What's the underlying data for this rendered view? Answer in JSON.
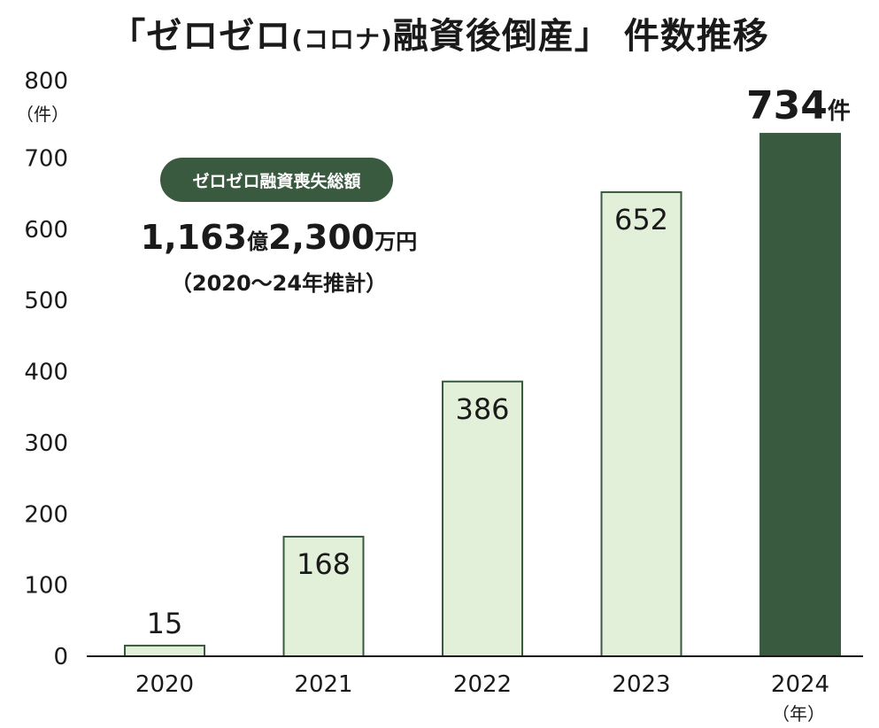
{
  "title_main": "「ゼロゼロ",
  "title_paren": "(コロナ)",
  "title_rest": "融資後倒産」 件数推移",
  "annotation": {
    "pill": "ゼロゼロ融資喪失総額",
    "amount_a": "1,163",
    "unit_a": "億",
    "amount_b": "2,300",
    "unit_b": "万円",
    "note": "（2020～24年推計）"
  },
  "last_value_number": "734",
  "last_value_unit": "件",
  "colors": {
    "light_bar": "#e2efd9",
    "dark_bar": "#3a5a40",
    "bar_stroke": "#3a5a40"
  },
  "chart_data": {
    "type": "bar",
    "categories": [
      "2020",
      "2021",
      "2022",
      "2023",
      "2024"
    ],
    "values": [
      15,
      168,
      386,
      652,
      734
    ],
    "value_labels": [
      "15",
      "168",
      "386",
      "652",
      "734"
    ],
    "ylim": [
      0,
      800
    ],
    "yticks": [
      0,
      100,
      200,
      300,
      400,
      500,
      600,
      700,
      800
    ],
    "ylabel": "（件）",
    "xlabel": "（年）",
    "grid": false,
    "highlight_index": 4
  }
}
